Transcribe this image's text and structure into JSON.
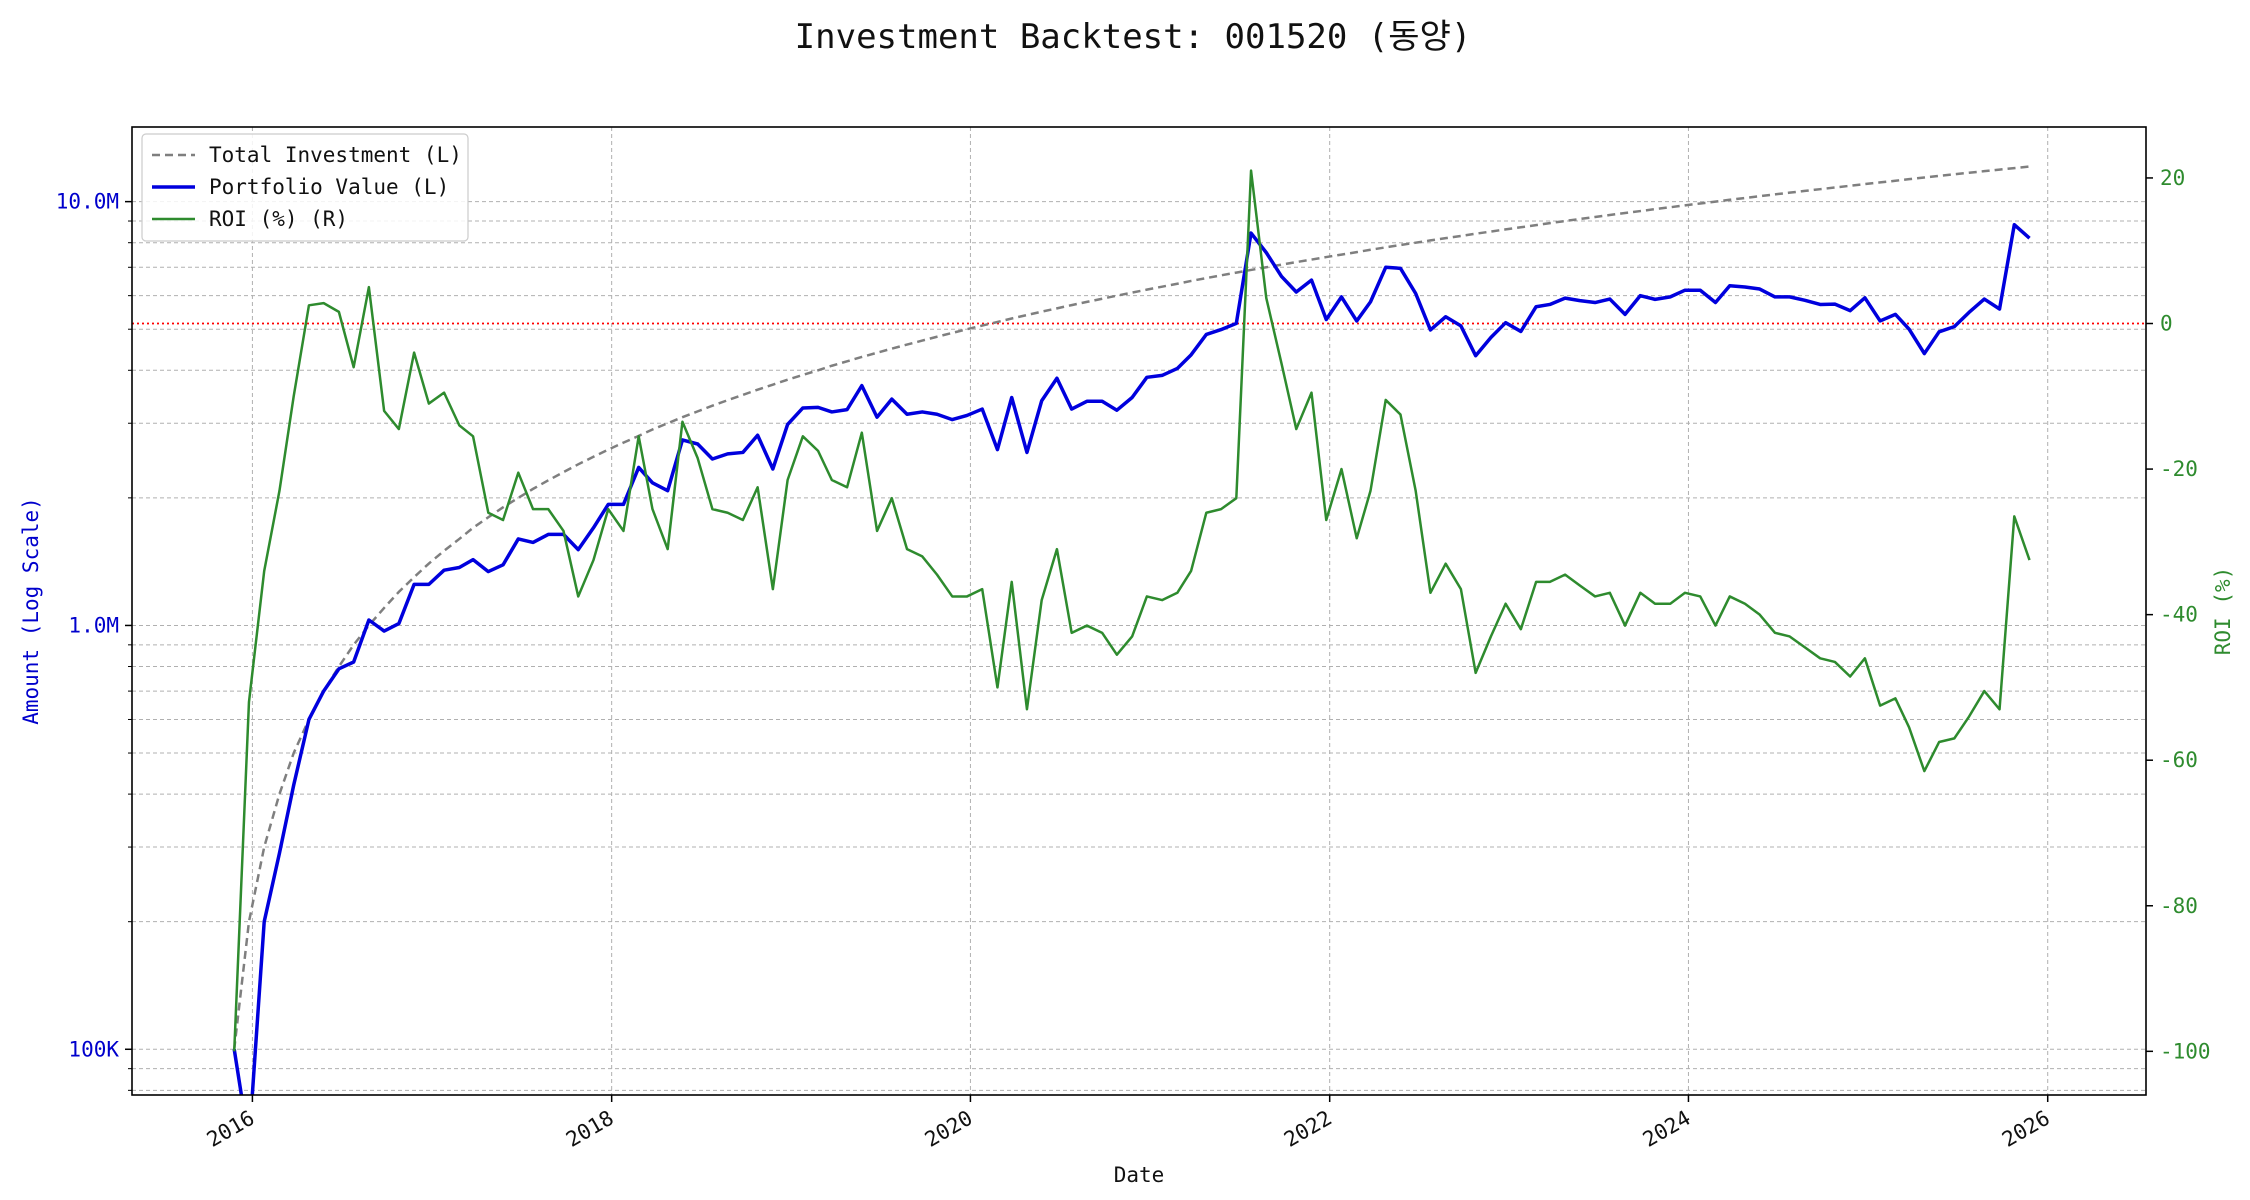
{
  "chart_data": {
    "type": "line",
    "title": "Investment Backtest: 001520 (동양)",
    "xlabel": "Date",
    "ylabel_left": "Amount (Log Scale)",
    "ylabel_right": "ROI (%)",
    "left_axis_scale": "log",
    "ylim_left": [
      78000,
      15000000
    ],
    "ylim_right": [
      -106,
      27
    ],
    "xlim": [
      "2015-05-01",
      "2026-07-20"
    ],
    "x_ticks": [
      "2016",
      "2018",
      "2020",
      "2022",
      "2024",
      "2026"
    ],
    "y_ticks_left": [
      "100K",
      "1.0M",
      "10.0M"
    ],
    "y_ticks_right": [
      "20",
      "0",
      "-20",
      "-40",
      "-60",
      "-80",
      "-100"
    ],
    "reference_line": {
      "axis": "right",
      "value": 0,
      "style": "dotted",
      "color": "#ff0000"
    },
    "grid": true,
    "legend_position": "top-left",
    "colors": {
      "total_investment": "#7f7f7f",
      "portfolio_value": "#0000dd",
      "roi": "#2e8b2e",
      "left_axis": "#0000cc",
      "right_axis": "#2e8b2e"
    },
    "series": [
      {
        "name": "Total Investment (L)",
        "axis": "left",
        "style": "dashed",
        "monthly_contribution": 100000,
        "x": [
          "2015-11-25",
          "2025-11-25"
        ],
        "note_values": [
          100000,
          12100000
        ]
      },
      {
        "name": "Portfolio Value (L)",
        "axis": "left",
        "style": "solid",
        "x": [
          "2015-11-25",
          "2015-12-25",
          "2016-01-25",
          "2016-02-25",
          "2016-03-25",
          "2016-04-25",
          "2016-05-25",
          "2016-06-25",
          "2016-07-25",
          "2016-08-25",
          "2016-09-25",
          "2016-10-25",
          "2016-11-25",
          "2016-12-25",
          "2017-01-25",
          "2017-02-25",
          "2017-03-25",
          "2017-04-25",
          "2017-05-25",
          "2017-06-25",
          "2017-07-25",
          "2017-08-25",
          "2017-09-25",
          "2017-10-25",
          "2017-11-25",
          "2017-12-25",
          "2018-01-25",
          "2018-02-25",
          "2018-03-25",
          "2018-04-25",
          "2018-05-25",
          "2018-06-25",
          "2018-07-25",
          "2018-08-25",
          "2018-09-25",
          "2018-10-25",
          "2018-11-25",
          "2018-12-25",
          "2019-01-25",
          "2019-02-25",
          "2019-03-25",
          "2019-04-25",
          "2019-05-25",
          "2019-06-25",
          "2019-07-25",
          "2019-08-25",
          "2019-09-25",
          "2019-10-25",
          "2019-11-25",
          "2019-12-25",
          "2020-01-25",
          "2020-02-25",
          "2020-03-25",
          "2020-04-25",
          "2020-05-25",
          "2020-06-25",
          "2020-07-25",
          "2020-08-25",
          "2020-09-25",
          "2020-10-25",
          "2020-11-25",
          "2020-12-25",
          "2021-01-25",
          "2021-02-25",
          "2021-03-25",
          "2021-04-25",
          "2021-05-25",
          "2021-06-25",
          "2021-07-25",
          "2021-08-25",
          "2021-09-25",
          "2021-10-25",
          "2021-11-25",
          "2021-12-25",
          "2022-01-25",
          "2022-02-25",
          "2022-03-25",
          "2022-04-25",
          "2022-05-25",
          "2022-06-25",
          "2022-07-25",
          "2022-08-25",
          "2022-09-25",
          "2022-10-25",
          "2022-11-25",
          "2022-12-25",
          "2023-01-25",
          "2023-02-25",
          "2023-03-25",
          "2023-04-25",
          "2023-05-25",
          "2023-06-25",
          "2023-07-25",
          "2023-08-25",
          "2023-09-25",
          "2023-10-25",
          "2023-11-25",
          "2023-12-25",
          "2024-01-25",
          "2024-02-25",
          "2024-03-25",
          "2024-04-25",
          "2024-05-25",
          "2024-06-25",
          "2024-07-25",
          "2024-08-25",
          "2024-09-25",
          "2024-10-25",
          "2024-11-25",
          "2024-12-25",
          "2025-01-25",
          "2025-02-25",
          "2025-03-25",
          "2025-04-25",
          "2025-05-25",
          "2025-06-25",
          "2025-07-25",
          "2025-08-25",
          "2025-09-25",
          "2025-10-25",
          "2025-11-25"
        ],
        "values": [
          100000,
          60000,
          200000,
          290000,
          420000,
          600000,
          700000,
          790000,
          820000,
          1030000,
          970000,
          1010000,
          1250000,
          1250000,
          1350000,
          1370000,
          1430000,
          1340000,
          1390000,
          1600000,
          1570000,
          1640000,
          1640000,
          1510000,
          1700000,
          1930000,
          1930000,
          2360000,
          2170000,
          2080000,
          2740000,
          2680000,
          2470000,
          2540000,
          2560000,
          2810000,
          2340000,
          2980000,
          3260000,
          3270000,
          3190000,
          3230000,
          3680000,
          3100000,
          3420000,
          3150000,
          3190000,
          3150000,
          3060000,
          3130000,
          3240000,
          2600000,
          3450000,
          2560000,
          3390000,
          3830000,
          3240000,
          3380000,
          3380000,
          3220000,
          3450000,
          3850000,
          3890000,
          4040000,
          4350000,
          4860000,
          4990000,
          5160000,
          8430000,
          7580000,
          6660000,
          6120000,
          6530000,
          5270000,
          5960000,
          5230000,
          5800000,
          7000000,
          6960000,
          6070000,
          4980000,
          5350000,
          5090000,
          4330000,
          4780000,
          5180000,
          4940000,
          5650000,
          5720000,
          5920000,
          5840000,
          5780000,
          5890000,
          5420000,
          6000000,
          5880000,
          5960000,
          6180000,
          6180000,
          5780000,
          6330000,
          6290000,
          6220000,
          5960000,
          5960000,
          5850000,
          5720000,
          5730000,
          5530000,
          5930000,
          5230000,
          5420000,
          5000000,
          4380000,
          4930000,
          5070000,
          5480000,
          5890000,
          5580000,
          8820000,
          8200000
        ]
      },
      {
        "name": "ROI (%) (R)",
        "axis": "right",
        "style": "solid",
        "x": [
          "2015-11-25",
          "2015-12-25",
          "2016-01-25",
          "2016-02-25",
          "2016-03-25",
          "2016-04-25",
          "2016-05-25",
          "2016-06-25",
          "2016-07-25",
          "2016-08-25",
          "2016-09-25",
          "2016-10-25",
          "2016-11-25",
          "2016-12-25",
          "2017-01-25",
          "2017-02-25",
          "2017-03-25",
          "2017-04-25",
          "2017-05-25",
          "2017-06-25",
          "2017-07-25",
          "2017-08-25",
          "2017-09-25",
          "2017-10-25",
          "2017-11-25",
          "2017-12-25",
          "2018-01-25",
          "2018-02-25",
          "2018-03-25",
          "2018-04-25",
          "2018-05-25",
          "2018-06-25",
          "2018-07-25",
          "2018-08-25",
          "2018-09-25",
          "2018-10-25",
          "2018-11-25",
          "2018-12-25",
          "2019-01-25",
          "2019-02-25",
          "2019-03-25",
          "2019-04-25",
          "2019-05-25",
          "2019-06-25",
          "2019-07-25",
          "2019-08-25",
          "2019-09-25",
          "2019-10-25",
          "2019-11-25",
          "2019-12-25",
          "2020-01-25",
          "2020-02-25",
          "2020-03-25",
          "2020-04-25",
          "2020-05-25",
          "2020-06-25",
          "2020-07-25",
          "2020-08-25",
          "2020-09-25",
          "2020-10-25",
          "2020-11-25",
          "2020-12-25",
          "2021-01-25",
          "2021-02-25",
          "2021-03-25",
          "2021-04-25",
          "2021-05-25",
          "2021-06-25",
          "2021-07-25",
          "2021-08-25",
          "2021-09-25",
          "2021-10-25",
          "2021-11-25",
          "2021-12-25",
          "2022-01-25",
          "2022-02-25",
          "2022-03-25",
          "2022-04-25",
          "2022-05-25",
          "2022-06-25",
          "2022-07-25",
          "2022-08-25",
          "2022-09-25",
          "2022-10-25",
          "2022-11-25",
          "2022-12-25",
          "2023-01-25",
          "2023-02-25",
          "2023-03-25",
          "2023-04-25",
          "2023-05-25",
          "2023-06-25",
          "2023-07-25",
          "2023-08-25",
          "2023-09-25",
          "2023-10-25",
          "2023-11-25",
          "2023-12-25",
          "2024-01-25",
          "2024-02-25",
          "2024-03-25",
          "2024-04-25",
          "2024-05-25",
          "2024-06-25",
          "2024-07-25",
          "2024-08-25",
          "2024-09-25",
          "2024-10-25",
          "2024-11-25",
          "2024-12-25",
          "2025-01-25",
          "2025-02-25",
          "2025-03-25",
          "2025-04-25",
          "2025-05-25",
          "2025-06-25",
          "2025-07-25",
          "2025-08-25",
          "2025-09-25",
          "2025-10-25",
          "2025-11-25"
        ],
        "values": [
          -100,
          -52,
          -34,
          -23,
          -10,
          2.5,
          2.8,
          1.6,
          -6,
          5,
          -12,
          -14.5,
          -4,
          -11,
          -9.5,
          -14,
          -15.5,
          -26,
          -27,
          -20.5,
          -25.5,
          -25.5,
          -28.5,
          -37.5,
          -32.5,
          -25.5,
          -28.5,
          -15.5,
          -25.5,
          -31,
          -13.5,
          -18.5,
          -25.5,
          -26,
          -27,
          -22.5,
          -36.5,
          -21.5,
          -15.5,
          -17.5,
          -21.5,
          -22.5,
          -15,
          -28.5,
          -24,
          -31,
          -32,
          -34.5,
          -37.5,
          -37.5,
          -36.5,
          -50,
          -35.5,
          -53,
          -38,
          -31,
          -42.5,
          -41.5,
          -42.5,
          -45.5,
          -43,
          -37.5,
          -38,
          -37,
          -34,
          -26,
          -25.5,
          -24,
          21,
          3.5,
          -5.5,
          -14.5,
          -9.5,
          -27,
          -20,
          -29.5,
          -23,
          -10.5,
          -12.5,
          -23,
          -37,
          -33,
          -36.5,
          -48,
          -43,
          -38.5,
          -42,
          -35.5,
          -35.5,
          -34.5,
          -36,
          -37.5,
          -37,
          -41.5,
          -37,
          -38.5,
          -38.5,
          -37,
          -37.5,
          -41.5,
          -37.5,
          -38.5,
          -40,
          -42.5,
          -43,
          -44.5,
          -46,
          -46.5,
          -48.5,
          -46,
          -52.5,
          -51.5,
          -55.5,
          -61.5,
          -57.5,
          -57,
          -54,
          -50.5,
          -53,
          -26.5,
          -32.5
        ]
      }
    ]
  }
}
